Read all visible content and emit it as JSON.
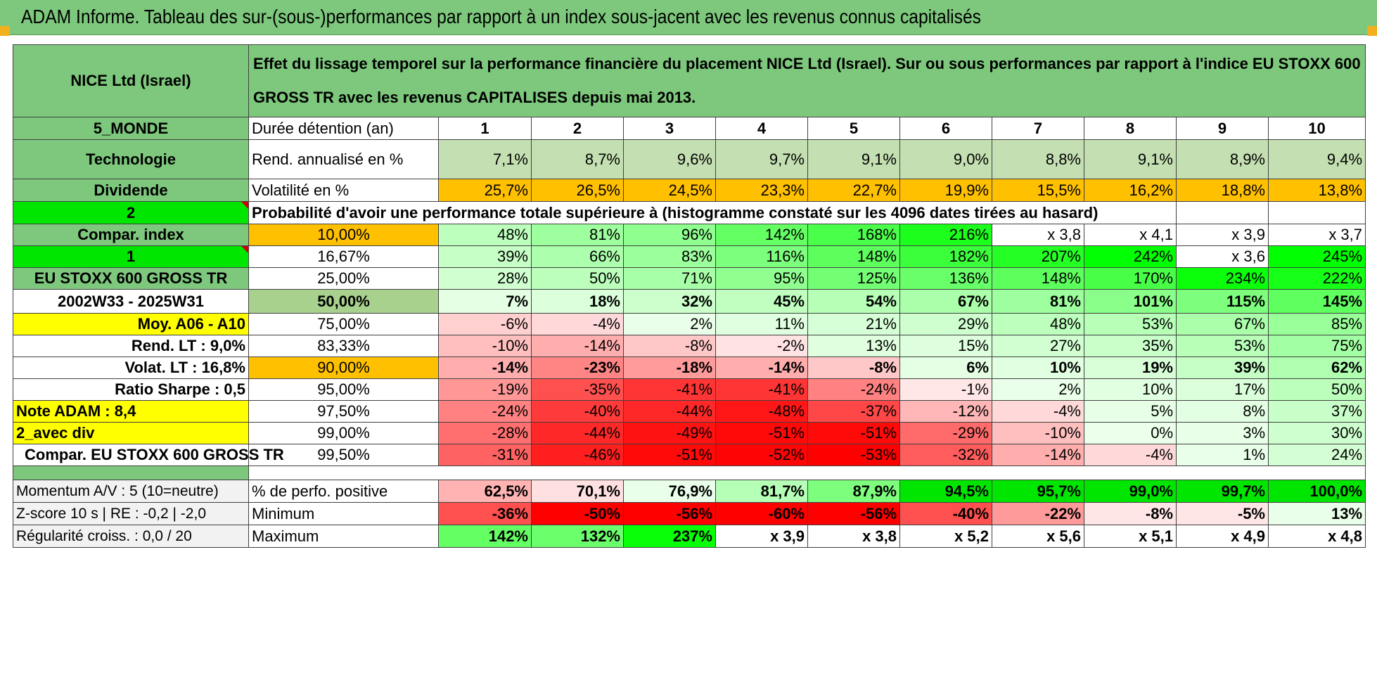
{
  "header": {
    "title": "ADAM Informe. Tableau des sur-(sous-)performances par rapport à un index sous-jacent avec les revenus connus capitalisés"
  },
  "sidebar": {
    "company": "NICE Ltd (Israel)",
    "region": "5_MONDE",
    "sector": "Technologie",
    "dividend_label": "Dividende",
    "val_2": "2",
    "compar_index": "Compar. index",
    "val_1": "1",
    "index_name": "EU STOXX 600 GROSS TR",
    "period": "2002W33 - 2025W31",
    "moy": "Moy. A06 - A10",
    "rend_lt": "Rend. LT :    9,0%",
    "volat_lt": "Volat. LT :    16,8%",
    "sharpe": "Ratio Sharpe :    0,5",
    "note": "Note ADAM : 8,4",
    "avec_div": "2_avec div",
    "compar_eu": "Compar. EU STOXX 600 GROSS TR",
    "momentum": "Momentum A/V : 5 (10=neutre)",
    "zscore": "Z-score 10 s | RE : -0,2 | -2,0",
    "regularite": "Régularité croiss. : 0,0 / 20"
  },
  "description": "Effet du lissage temporel sur la performance financière du placement NICE Ltd (Israel). Sur ou sous performances par rapport à l'indice EU STOXX 600 GROSS TR avec les revenus CAPITALISES depuis mai 2013.",
  "rows": {
    "duree_label": "Durée détention (an)",
    "years": [
      "1",
      "2",
      "3",
      "4",
      "5",
      "6",
      "7",
      "8",
      "9",
      "10"
    ],
    "rend_label": "Rend. annualisé en %",
    "rend": [
      "7,1%",
      "8,7%",
      "9,6%",
      "9,7%",
      "9,1%",
      "9,0%",
      "8,8%",
      "9,1%",
      "8,9%",
      "9,4%"
    ],
    "vol_label": "Volatilité en %",
    "vol": [
      "25,7%",
      "26,5%",
      "24,5%",
      "23,3%",
      "22,7%",
      "19,9%",
      "15,5%",
      "16,2%",
      "18,8%",
      "13,8%"
    ],
    "prob_label": "Probabilité d'avoir une performance totale supérieure à (histogramme constaté sur les 4096 dates tirées au hasard)",
    "quantiles": [
      {
        "q": "10,00%",
        "vals": [
          "48%",
          "81%",
          "96%",
          "142%",
          "168%",
          "216%",
          "x 3,8",
          "x 4,1",
          "x 3,9",
          "x 3,7"
        ]
      },
      {
        "q": "16,67%",
        "vals": [
          "39%",
          "66%",
          "83%",
          "116%",
          "148%",
          "182%",
          "207%",
          "242%",
          "x 3,6",
          "245%"
        ]
      },
      {
        "q": "25,00%",
        "vals": [
          "28%",
          "50%",
          "71%",
          "95%",
          "125%",
          "136%",
          "148%",
          "170%",
          "234%",
          "222%"
        ]
      },
      {
        "q": "50,00%",
        "vals": [
          "7%",
          "18%",
          "32%",
          "45%",
          "54%",
          "67%",
          "81%",
          "101%",
          "115%",
          "145%"
        ]
      },
      {
        "q": "75,00%",
        "vals": [
          "-6%",
          "-4%",
          "2%",
          "11%",
          "21%",
          "29%",
          "48%",
          "53%",
          "67%",
          "85%"
        ]
      },
      {
        "q": "83,33%",
        "vals": [
          "-10%",
          "-14%",
          "-8%",
          "-2%",
          "13%",
          "15%",
          "27%",
          "35%",
          "53%",
          "75%"
        ]
      },
      {
        "q": "90,00%",
        "vals": [
          "-14%",
          "-23%",
          "-18%",
          "-14%",
          "-8%",
          "6%",
          "10%",
          "19%",
          "39%",
          "62%"
        ]
      },
      {
        "q": "95,00%",
        "vals": [
          "-19%",
          "-35%",
          "-41%",
          "-41%",
          "-24%",
          "-1%",
          "2%",
          "10%",
          "17%",
          "50%"
        ]
      },
      {
        "q": "97,50%",
        "vals": [
          "-24%",
          "-40%",
          "-44%",
          "-48%",
          "-37%",
          "-12%",
          "-4%",
          "5%",
          "8%",
          "37%"
        ]
      },
      {
        "q": "99,00%",
        "vals": [
          "-28%",
          "-44%",
          "-49%",
          "-51%",
          "-51%",
          "-29%",
          "-10%",
          "0%",
          "3%",
          "30%"
        ]
      },
      {
        "q": "99,50%",
        "vals": [
          "-31%",
          "-46%",
          "-51%",
          "-52%",
          "-53%",
          "-32%",
          "-14%",
          "-4%",
          "1%",
          "24%"
        ]
      }
    ],
    "pos_label": "% de perfo. positive",
    "pos": [
      "62,5%",
      "70,1%",
      "76,9%",
      "81,7%",
      "87,9%",
      "94,5%",
      "95,7%",
      "99,0%",
      "99,7%",
      "100,0%"
    ],
    "min_label": "Minimum",
    "min": [
      "-36%",
      "-50%",
      "-56%",
      "-60%",
      "-56%",
      "-40%",
      "-22%",
      "-8%",
      "-5%",
      "13%"
    ],
    "max_label": "Maximum",
    "max": [
      "142%",
      "132%",
      "237%",
      "x 3,9",
      "x 3,8",
      "x 5,2",
      "x 5,6",
      "x 5,1",
      "x 4,9",
      "x 4,8"
    ]
  },
  "colors": {
    "green_header": "#7dc87d",
    "rend_fill": "#c4e0b2",
    "vol_fill": "#ffc000",
    "bright_green": "#00e600",
    "yellow": "#ffff00",
    "orange": "#ffc000"
  }
}
